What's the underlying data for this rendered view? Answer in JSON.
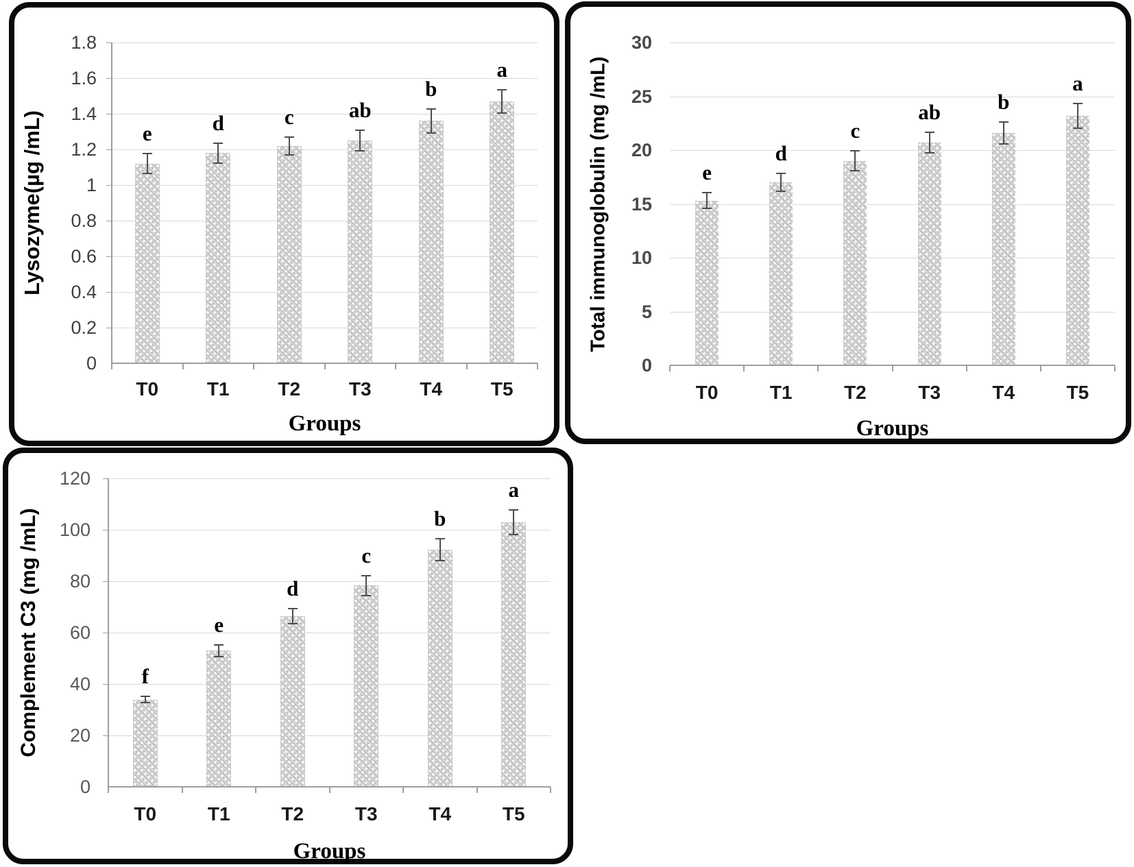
{
  "figure": {
    "background": "#ffffff",
    "panel_border_color": "#0a0a0a",
    "colors": {
      "bar_fill": "#cbcbcb",
      "bar_dots": "#ffffff",
      "gridline": "#d9d9d9",
      "axis_line": "#9e9e9e",
      "error_bar": "#4d4d4d",
      "tick_text": "#404040",
      "tick_text_right_chart": "#4a4a4a",
      "tick_text_bottom_chart": "#595959",
      "category_text": "#1a1a1a",
      "title_text": "#000000"
    }
  },
  "chart_data": [
    {
      "type": "bar",
      "title": "",
      "xlabel": "Groups",
      "ylabel": "Lysozyme(µg /mL)",
      "categories": [
        "T0",
        "T1",
        "T2",
        "T3",
        "T4",
        "T5"
      ],
      "values": [
        1.12,
        1.18,
        1.22,
        1.25,
        1.36,
        1.47
      ],
      "errors": [
        0.06,
        0.06,
        0.055,
        0.06,
        0.07,
        0.07
      ],
      "letters": [
        "e",
        "d",
        "c",
        "ab",
        "b",
        "a"
      ],
      "ylim": [
        0,
        1.8
      ],
      "ytick_step": 0.2,
      "ytick_labels": [
        "0",
        "0.2",
        "0.4",
        "0.6",
        "0.8",
        "1",
        "1.2",
        "1.4",
        "1.6",
        "1.8"
      ],
      "grid": "horizontal",
      "legend": "none"
    },
    {
      "type": "bar",
      "title": "",
      "xlabel": "Groups",
      "ylabel": "Total immunoglobulin (mg /mL)",
      "categories": [
        "T0",
        "T1",
        "T2",
        "T3",
        "T4",
        "T5"
      ],
      "values": [
        15.3,
        17.0,
        19.0,
        20.7,
        21.6,
        23.2
      ],
      "errors": [
        0.8,
        0.9,
        1.0,
        1.05,
        1.1,
        1.2
      ],
      "letters": [
        "e",
        "d",
        "c",
        "ab",
        "b",
        "a"
      ],
      "ylim": [
        0,
        30
      ],
      "ytick_step": 5,
      "ytick_labels": [
        "0",
        "5",
        "10",
        "15",
        "20",
        "25",
        "30"
      ],
      "grid": "horizontal",
      "legend": "none"
    },
    {
      "type": "bar",
      "title": "",
      "xlabel": "Groups",
      "ylabel": "Complement C3 (mg /mL)",
      "categories": [
        "T0",
        "T1",
        "T2",
        "T3",
        "T4",
        "T5"
      ],
      "values": [
        34,
        53,
        66.5,
        78.3,
        92.3,
        103
      ],
      "errors": [
        1.5,
        2.5,
        3.2,
        4.2,
        4.5,
        5.0
      ],
      "letters": [
        "f",
        "e",
        "d",
        "c",
        "b",
        "a"
      ],
      "ylim": [
        0,
        120
      ],
      "ytick_step": 20,
      "ytick_labels": [
        "0",
        "20",
        "40",
        "60",
        "80",
        "100",
        "120"
      ],
      "grid": "horizontal",
      "legend": "none"
    }
  ]
}
